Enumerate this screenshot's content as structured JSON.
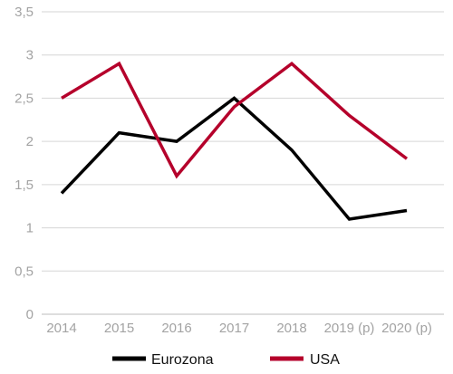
{
  "chart_data": {
    "type": "line",
    "categories": [
      "2014",
      "2015",
      "2016",
      "2017",
      "2018",
      "2019 (p)",
      "2020 (p)"
    ],
    "series": [
      {
        "name": "Eurozona",
        "color": "#000000",
        "values": [
          1.4,
          2.1,
          2.0,
          2.5,
          1.9,
          1.1,
          1.2
        ]
      },
      {
        "name": "USA",
        "color": "#b5002b",
        "values": [
          2.5,
          2.9,
          1.6,
          2.4,
          2.9,
          2.3,
          1.8
        ]
      }
    ],
    "yticks": [
      "0",
      "0,5",
      "1",
      "1,5",
      "2",
      "2,5",
      "3",
      "3,5"
    ],
    "ylim": [
      0,
      3.5
    ],
    "grid": true,
    "legend_position": "bottom",
    "title": "",
    "xlabel": "",
    "ylabel": ""
  }
}
